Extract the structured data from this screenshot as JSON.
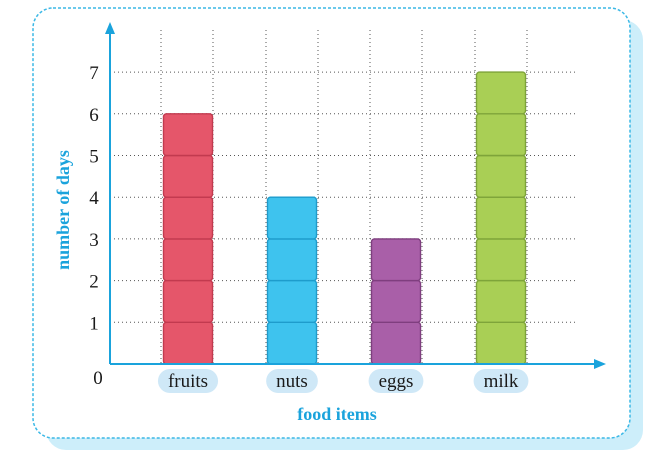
{
  "chart_data": {
    "type": "bar",
    "title": "",
    "categories": [
      "fruits",
      "nuts",
      "eggs",
      "milk"
    ],
    "values": [
      6,
      4,
      3,
      7
    ],
    "xlabel": "food items",
    "ylabel": "number of days",
    "ylim": [
      0,
      7
    ],
    "y_ticks": [
      "0",
      "1",
      "2",
      "3",
      "4",
      "5",
      "6",
      "7"
    ],
    "grid": true,
    "bar_style": "stacked unit blocks",
    "colors": {
      "bars": [
        "#e5566a",
        "#3ec3ee",
        "#a95fa8",
        "#a9cf55"
      ],
      "bar_borders": [
        "#c23a4f",
        "#1e9ccc",
        "#7f3e7f",
        "#7ea43a"
      ],
      "axis": "#1aa3dc",
      "axis_title": "#1aa3dc",
      "frame": "#3bb8e6",
      "frame_fill": "#ffffff",
      "shadow": "#cdeefa",
      "label_pill": "#cfe8f7",
      "grid": "#555555"
    }
  }
}
